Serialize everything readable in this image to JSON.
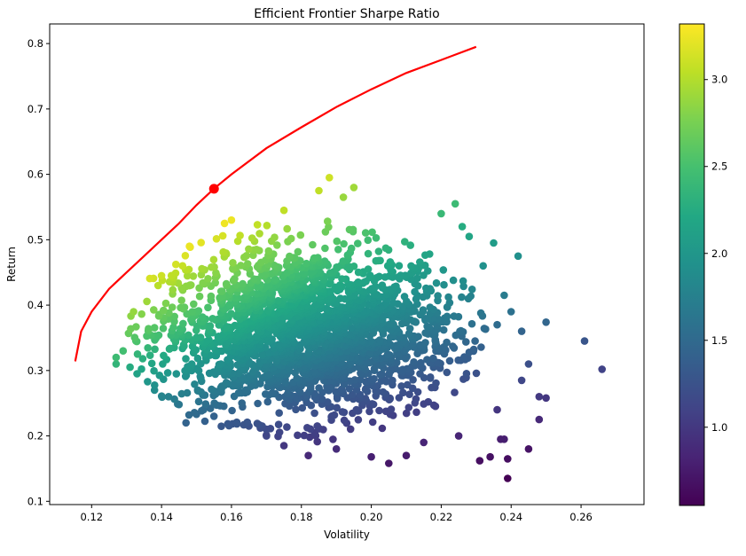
{
  "chart_data": {
    "type": "scatter",
    "title": "Efficient Frontier Sharpe Ratio",
    "xlabel": "Volatility",
    "ylabel": "Return",
    "xlim": [
      0.108,
      0.278
    ],
    "ylim": [
      0.095,
      0.83
    ],
    "x_ticks": [
      0.12,
      0.14,
      0.16,
      0.18,
      0.2,
      0.22,
      0.24,
      0.26
    ],
    "x_tick_labels": [
      "0.12",
      "0.14",
      "0.16",
      "0.18",
      "0.20",
      "0.22",
      "0.24",
      "0.26"
    ],
    "y_ticks": [
      0.1,
      0.2,
      0.3,
      0.4,
      0.5,
      0.6,
      0.7,
      0.8
    ],
    "y_tick_labels": [
      "0.1",
      "0.2",
      "0.3",
      "0.4",
      "0.5",
      "0.6",
      "0.7",
      "0.8"
    ],
    "colorbar": {
      "colormap": "viridis",
      "range": [
        0.55,
        3.32
      ],
      "ticks": [
        1.0,
        1.5,
        2.0,
        2.5,
        3.0
      ],
      "tick_labels": [
        "1.0",
        "1.5",
        "2.0",
        "2.5",
        "3.0"
      ]
    },
    "scatter_cloud": {
      "description": "dense cloud of simulated portfolios colored by Sharpe ratio",
      "volatility_range": [
        0.127,
        0.266
      ],
      "return_range": [
        0.135,
        0.595
      ],
      "points": [
        [
          0.127,
          0.32
        ],
        [
          0.127,
          0.31
        ],
        [
          0.129,
          0.33
        ],
        [
          0.131,
          0.305
        ],
        [
          0.133,
          0.295
        ],
        [
          0.132,
          0.39
        ],
        [
          0.136,
          0.283
        ],
        [
          0.138,
          0.27
        ],
        [
          0.139,
          0.43
        ],
        [
          0.14,
          0.445
        ],
        [
          0.142,
          0.26
        ],
        [
          0.145,
          0.248
        ],
        [
          0.146,
          0.46
        ],
        [
          0.148,
          0.49
        ],
        [
          0.147,
          0.22
        ],
        [
          0.152,
          0.24
        ],
        [
          0.155,
          0.23
        ],
        [
          0.158,
          0.525
        ],
        [
          0.16,
          0.53
        ],
        [
          0.165,
          0.215
        ],
        [
          0.17,
          0.2
        ],
        [
          0.175,
          0.185
        ],
        [
          0.175,
          0.545
        ],
        [
          0.182,
          0.17
        ],
        [
          0.185,
          0.575
        ],
        [
          0.188,
          0.595
        ],
        [
          0.192,
          0.565
        ],
        [
          0.195,
          0.58
        ],
        [
          0.19,
          0.18
        ],
        [
          0.2,
          0.168
        ],
        [
          0.205,
          0.158
        ],
        [
          0.21,
          0.17
        ],
        [
          0.215,
          0.19
        ],
        [
          0.22,
          0.54
        ],
        [
          0.224,
          0.555
        ],
        [
          0.226,
          0.52
        ],
        [
          0.228,
          0.505
        ],
        [
          0.225,
          0.2
        ],
        [
          0.232,
          0.46
        ],
        [
          0.235,
          0.495
        ],
        [
          0.236,
          0.24
        ],
        [
          0.231,
          0.162
        ],
        [
          0.234,
          0.168
        ],
        [
          0.238,
          0.195
        ],
        [
          0.239,
          0.165
        ],
        [
          0.239,
          0.135
        ],
        [
          0.237,
          0.195
        ],
        [
          0.242,
          0.475
        ],
        [
          0.238,
          0.415
        ],
        [
          0.24,
          0.39
        ],
        [
          0.236,
          0.37
        ],
        [
          0.243,
          0.36
        ],
        [
          0.245,
          0.31
        ],
        [
          0.243,
          0.285
        ],
        [
          0.245,
          0.18
        ],
        [
          0.248,
          0.225
        ],
        [
          0.248,
          0.26
        ],
        [
          0.25,
          0.258
        ],
        [
          0.25,
          0.374
        ],
        [
          0.261,
          0.345
        ],
        [
          0.266,
          0.302
        ]
      ]
    },
    "series": [
      {
        "kind": "line",
        "color": "#ff0000",
        "points": [
          [
            0.1153,
            0.314
          ],
          [
            0.117,
            0.36
          ],
          [
            0.12,
            0.39
          ],
          [
            0.125,
            0.425
          ],
          [
            0.13,
            0.45
          ],
          [
            0.135,
            0.475
          ],
          [
            0.14,
            0.5
          ],
          [
            0.145,
            0.525
          ],
          [
            0.15,
            0.553
          ],
          [
            0.155,
            0.578
          ],
          [
            0.16,
            0.6
          ],
          [
            0.17,
            0.64
          ],
          [
            0.18,
            0.672
          ],
          [
            0.19,
            0.703
          ],
          [
            0.2,
            0.73
          ],
          [
            0.21,
            0.755
          ],
          [
            0.22,
            0.775
          ],
          [
            0.23,
            0.795
          ]
        ]
      }
    ],
    "max_sharpe_point": {
      "x": 0.155,
      "y": 0.578,
      "color": "#ff0000"
    }
  }
}
